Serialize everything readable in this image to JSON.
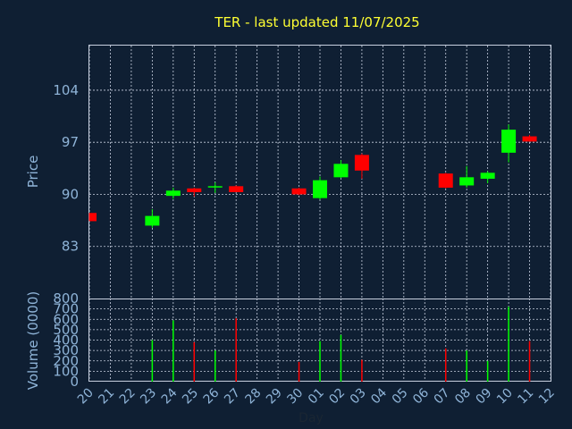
{
  "chart_data": {
    "type": "candlestick",
    "title": "TER - last updated 11/07/2025",
    "xlabel": "Day",
    "x_ticks": [
      "20",
      "21",
      "22",
      "23",
      "24",
      "25",
      "26",
      "27",
      "28",
      "29",
      "30",
      "01",
      "02",
      "03",
      "04",
      "05",
      "06",
      "07",
      "08",
      "09",
      "10",
      "11",
      "12"
    ],
    "price_panel": {
      "ylabel": "Price",
      "yticks": [
        83,
        90,
        97,
        104
      ],
      "ylim": [
        76,
        110
      ],
      "grid": true,
      "candles": [
        {
          "day": "20",
          "open": 87.5,
          "close": 86.4,
          "high": 87.5,
          "low": 86.4
        },
        {
          "day": "23",
          "open": 85.8,
          "close": 87.1,
          "high": 88.0,
          "low": 85.5
        },
        {
          "day": "24",
          "open": 89.8,
          "close": 90.5,
          "high": 90.9,
          "low": 89.4
        },
        {
          "day": "25",
          "open": 90.8,
          "close": 90.3,
          "high": 90.9,
          "low": 89.7
        },
        {
          "day": "26",
          "open": 91.0,
          "close": 91.1,
          "high": 91.6,
          "low": 90.2
        },
        {
          "day": "27",
          "open": 91.1,
          "close": 90.3,
          "high": 91.2,
          "low": 90.3
        },
        {
          "day": "30",
          "open": 90.8,
          "close": 90.0,
          "high": 90.9,
          "low": 89.9
        },
        {
          "day": "01",
          "open": 89.5,
          "close": 91.9,
          "high": 92.4,
          "low": 89.3
        },
        {
          "day": "02",
          "open": 92.3,
          "close": 94.1,
          "high": 94.6,
          "low": 92.2
        },
        {
          "day": "03",
          "open": 95.3,
          "close": 93.2,
          "high": 95.5,
          "low": 92.1
        },
        {
          "day": "07",
          "open": 92.8,
          "close": 90.9,
          "high": 92.9,
          "low": 90.8
        },
        {
          "day": "08",
          "open": 91.2,
          "close": 92.3,
          "high": 93.8,
          "low": 90.9
        },
        {
          "day": "09",
          "open": 92.1,
          "close": 92.9,
          "high": 93.1,
          "low": 91.5
        },
        {
          "day": "10",
          "open": 95.6,
          "close": 98.7,
          "high": 99.4,
          "low": 94.3
        },
        {
          "day": "11",
          "open": 97.8,
          "close": 97.1,
          "high": 98.0,
          "low": 97.1
        }
      ]
    },
    "volume_panel": {
      "ylabel": "Volume (0000)",
      "yticks": [
        0,
        100,
        200,
        300,
        400,
        500,
        600,
        700,
        800
      ],
      "ylim": [
        0,
        800
      ],
      "grid": true,
      "bars": [
        {
          "day": "20",
          "value": 0,
          "dir": "down"
        },
        {
          "day": "23",
          "value": 400,
          "dir": "up"
        },
        {
          "day": "24",
          "value": 590,
          "dir": "up"
        },
        {
          "day": "25",
          "value": 380,
          "dir": "down"
        },
        {
          "day": "26",
          "value": 300,
          "dir": "up"
        },
        {
          "day": "27",
          "value": 610,
          "dir": "down"
        },
        {
          "day": "30",
          "value": 190,
          "dir": "down"
        },
        {
          "day": "01",
          "value": 390,
          "dir": "up"
        },
        {
          "day": "02",
          "value": 450,
          "dir": "up"
        },
        {
          "day": "03",
          "value": 210,
          "dir": "down"
        },
        {
          "day": "07",
          "value": 320,
          "dir": "down"
        },
        {
          "day": "08",
          "value": 300,
          "dir": "up"
        },
        {
          "day": "09",
          "value": 200,
          "dir": "up"
        },
        {
          "day": "10",
          "value": 720,
          "dir": "up"
        },
        {
          "day": "11",
          "value": 390,
          "dir": "down"
        }
      ]
    },
    "colors": {
      "background": "#0f1f33",
      "up": "#00ff00",
      "down": "#ff0000",
      "title": "#ffff33",
      "axis_text": "#8fb4d8",
      "grid": "#c8d0e0"
    }
  }
}
